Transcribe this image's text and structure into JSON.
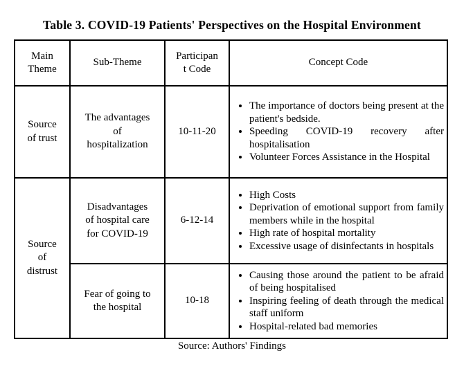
{
  "title": "Table 3. COVID-19 Patients' Perspectives on the Hospital Environment",
  "table": {
    "headers": {
      "main_theme": "Main\nTheme",
      "sub_theme": "Sub-Theme",
      "participant_code": "Participan\nt Code",
      "concept_code": "Concept Code"
    },
    "rows": [
      {
        "main_theme": "Source\nof trust",
        "sub_theme": "The advantages\nof\nhospitalization",
        "participant_code": "10-11-20",
        "concepts": [
          "The importance of doctors being present at the patient's bedside.",
          "Speeding COVID-19 recovery after hospitalisation",
          "Volunteer Forces Assistance in the Hospital"
        ]
      },
      {
        "main_theme": "Source\nof\ndistrust",
        "sub_theme": "Disadvantages\nof hospital care\nfor COVID-19",
        "participant_code": "6-12-14",
        "concepts": [
          "High Costs",
          "Deprivation of emotional support from family members while in the hospital",
          "High rate of hospital mortality",
          "Excessive usage of disinfectants in hospitals"
        ]
      },
      {
        "sub_theme": "Fear of going to\nthe hospital",
        "participant_code": "10-18",
        "concepts": [
          "Causing those around the patient to be afraid of being hospitalised",
          "Inspiring feeling of death through the medical staff uniform",
          "Hospital-related bad memories"
        ]
      }
    ]
  },
  "footer": "Source: Authors' Findings"
}
